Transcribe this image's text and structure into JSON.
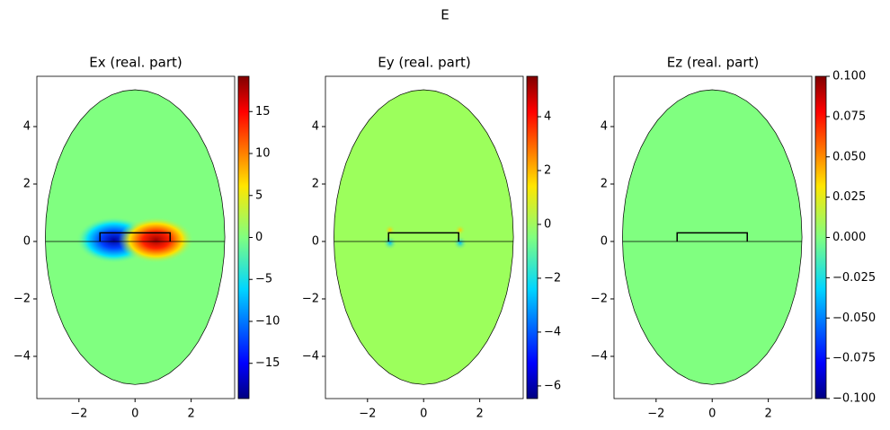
{
  "title": "E",
  "chart_data": [
    {
      "type": "heatmap",
      "title": "Ex (real. part)",
      "colormap": "jet",
      "color": "#80ff80",
      "xlim": [
        -3.5,
        3.55
      ],
      "ylim": [
        -5.47,
        5.75
      ],
      "xticks": [
        {
          "value": -2,
          "label": "−2"
        },
        0,
        2
      ],
      "yticks": [
        {
          "value": -4,
          "label": "−4"
        },
        {
          "value": -2,
          "label": "−2"
        },
        0,
        2,
        4
      ],
      "clim": [
        -19.2,
        19.2
      ],
      "cticks": [
        {
          "value": -15,
          "label": "−15"
        },
        {
          "value": -10,
          "label": "−10"
        },
        {
          "value": -5,
          "label": "−5"
        },
        0,
        5,
        10,
        15
      ]
    },
    {
      "type": "heatmap",
      "title": "Ey (real. part)",
      "colormap": "jet",
      "color": "#9cff5c",
      "xlim": [
        -3.5,
        3.55
      ],
      "ylim": [
        -5.47,
        5.75
      ],
      "xticks": [
        {
          "value": -2,
          "label": "−2"
        },
        0,
        2
      ],
      "yticks": [
        {
          "value": -4,
          "label": "−4"
        },
        {
          "value": -2,
          "label": "−2"
        },
        0,
        2,
        4
      ],
      "clim": [
        -6.47,
        5.5
      ],
      "cticks": [
        {
          "value": -6,
          "label": "−6"
        },
        {
          "value": -4,
          "label": "−4"
        },
        {
          "value": -2,
          "label": "−2"
        },
        0,
        2,
        4
      ]
    },
    {
      "type": "heatmap",
      "title": "Ez (real. part)",
      "colormap": "jet",
      "color": "#80ff80",
      "xlim": [
        -3.5,
        3.55
      ],
      "ylim": [
        -5.47,
        5.75
      ],
      "xticks": [
        {
          "value": -2,
          "label": "−2"
        },
        0,
        2
      ],
      "yticks": [
        {
          "value": -4,
          "label": "−4"
        },
        {
          "value": -2,
          "label": "−2"
        },
        0,
        2,
        4
      ],
      "clim": [
        -0.1,
        0.1
      ],
      "cticks": [
        {
          "value": -0.1,
          "label": "−0.100"
        },
        {
          "value": -0.075,
          "label": "−0.075"
        },
        {
          "value": -0.05,
          "label": "−0.050"
        },
        {
          "value": -0.025,
          "label": "−0.025"
        },
        {
          "value": 0,
          "label": "0.000"
        },
        {
          "value": 0.025,
          "label": "0.025"
        },
        {
          "value": 0.05,
          "label": "0.050"
        },
        {
          "value": 0.075,
          "label": "0.075"
        },
        {
          "value": 0.1,
          "label": "0.100"
        }
      ]
    }
  ]
}
